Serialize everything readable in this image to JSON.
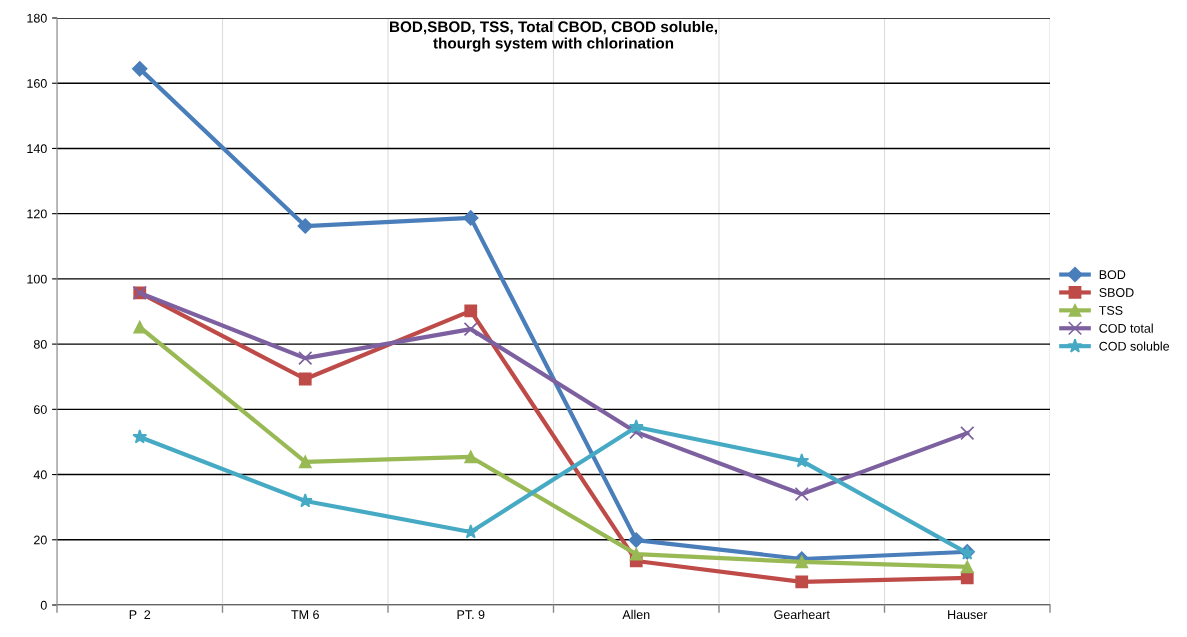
{
  "chart_data": {
    "type": "line",
    "title": "BOD,SBOD, TSS, Total CBOD, CBOD soluble,\nthourgh system with chlorination",
    "categories": [
      "P  2",
      "TM 6",
      "PT. 9",
      "Allen",
      "Gearheart",
      "Hauser"
    ],
    "series": [
      {
        "name": "BOD",
        "color": "#4a7ebb",
        "marker": "diamond",
        "values": [
          164.4,
          116.2,
          118.7,
          19.9,
          14.1,
          16.3
        ]
      },
      {
        "name": "SBOD",
        "color": "#be4b48",
        "marker": "square",
        "values": [
          95.7,
          69.3,
          90.2,
          13.5,
          7.1,
          8.3
        ]
      },
      {
        "name": "TSS",
        "color": "#98b954",
        "marker": "triangle",
        "values": [
          85.2,
          43.9,
          45.4,
          15.6,
          13.2,
          11.7
        ]
      },
      {
        "name": "COD total",
        "color": "#7d60a0",
        "marker": "cross",
        "values": [
          95.7,
          75.7,
          84.6,
          53,
          34,
          52.7
        ]
      },
      {
        "name": "COD soluble",
        "color": "#46aac5",
        "marker": "star",
        "values": [
          51.5,
          31.9,
          22.4,
          54.6,
          44.2,
          15.9
        ]
      }
    ],
    "ylim": [
      0,
      180
    ],
    "yticks": [
      0,
      20,
      40,
      60,
      80,
      100,
      120,
      140,
      160,
      180
    ],
    "grid": true,
    "legend": "right",
    "line_style": "solid"
  }
}
